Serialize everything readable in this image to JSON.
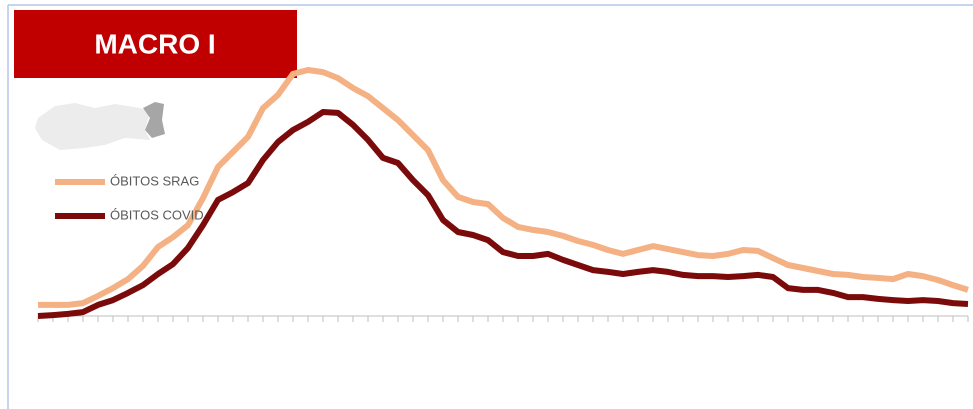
{
  "chart_data": {
    "type": "line",
    "title": "MACRO I",
    "categories": [
      null,
      null,
      null,
      null,
      null,
      null,
      null,
      null,
      null,
      null,
      null,
      null,
      null,
      null,
      null,
      null,
      null,
      null,
      null,
      null,
      null,
      null,
      null,
      null,
      null,
      null,
      null,
      null,
      null,
      null,
      null,
      null,
      null,
      null,
      null,
      null,
      null,
      null,
      null,
      null,
      null,
      null,
      null,
      null,
      null,
      null,
      null,
      null,
      null,
      null,
      null,
      null,
      null,
      null,
      null,
      null,
      null,
      null,
      null,
      null,
      null,
      null,
      null
    ],
    "ylim": [
      0,
      100
    ],
    "series": [
      {
        "name": "ÓBITOS SRAG",
        "color": "#f4b183",
        "values": [
          3.7,
          3.7,
          3.7,
          4.3,
          6.7,
          9.3,
          12.3,
          16.7,
          23,
          26.3,
          30.3,
          39.3,
          49.7,
          54.7,
          59.7,
          69.3,
          73.7,
          80.7,
          82,
          81.3,
          79.3,
          76,
          73.3,
          69.3,
          65.3,
          60.3,
          55.3,
          45.3,
          39.7,
          38,
          37.3,
          32.7,
          29.7,
          28.7,
          28,
          26.7,
          25,
          23.7,
          22,
          20.7,
          22,
          23.3,
          22.3,
          21.3,
          20.3,
          20,
          20.7,
          22,
          21.7,
          19.3,
          17,
          16,
          15,
          14,
          13.7,
          13,
          12.7,
          12.3,
          14,
          13.3,
          12,
          10.3,
          8.7
        ]
      },
      {
        "name": "ÓBITOS COVID",
        "color": "#7b0a0a",
        "values": [
          0,
          0.3,
          0.7,
          1.3,
          3.7,
          5.3,
          7.7,
          10.3,
          14,
          17.3,
          22.7,
          30.3,
          38.7,
          41.3,
          44.3,
          52,
          58,
          62,
          64.7,
          68,
          67.7,
          63.7,
          58.7,
          52.7,
          51,
          45.3,
          40.3,
          32,
          28,
          27,
          25.3,
          21.3,
          20,
          20,
          20.7,
          18.7,
          17,
          15.3,
          14.7,
          14,
          14.7,
          15.3,
          14.7,
          13.7,
          13.3,
          13.3,
          13,
          13.3,
          13.7,
          13,
          9.3,
          8.7,
          8.7,
          7.7,
          6.3,
          6.3,
          5.7,
          5.3,
          5,
          5.3,
          5,
          4.3,
          4
        ]
      }
    ]
  }
}
